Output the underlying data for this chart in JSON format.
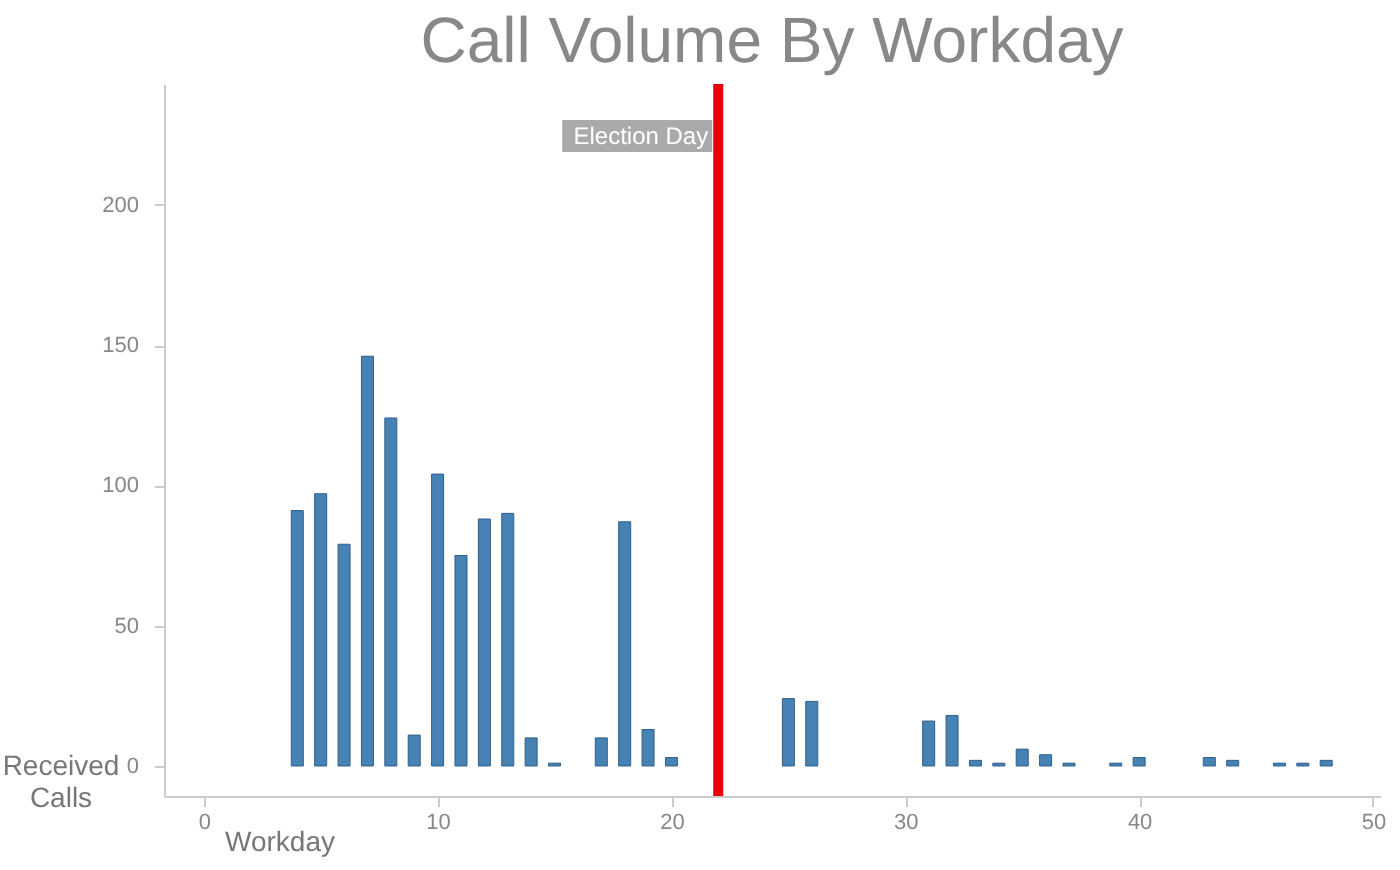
{
  "chart_data": {
    "type": "bar",
    "title": "Call Volume By Workday",
    "xlabel": "Workday",
    "ylabel": "Received Calls",
    "x": [
      4,
      5,
      6,
      7,
      8,
      9,
      10,
      11,
      12,
      13,
      14,
      15,
      17,
      18,
      19,
      20,
      25,
      26,
      31,
      32,
      33,
      34,
      35,
      36,
      37,
      39,
      40,
      43,
      44,
      46,
      47,
      48
    ],
    "series": [
      {
        "color": "#4682b4",
        "values": [
          91,
          97,
          79,
          146,
          124,
          11,
          104,
          75,
          88,
          90,
          10,
          1,
          10,
          87,
          13,
          3,
          24,
          23,
          16,
          18,
          2,
          1,
          6,
          4,
          1,
          1,
          3,
          3,
          2,
          1,
          1,
          2
        ]
      }
    ],
    "xlim": [
      -1.7,
      50.3
    ],
    "xticks": [
      0,
      10,
      20,
      30,
      40,
      50
    ],
    "ylim": [
      -10.7,
      243
    ],
    "yticks": [
      0,
      50,
      100,
      150,
      200
    ],
    "grid": false,
    "ref_lines": [
      {
        "axis": "x",
        "value": 22,
        "label": "Election Day",
        "color": "#e8000b"
      }
    ]
  }
}
